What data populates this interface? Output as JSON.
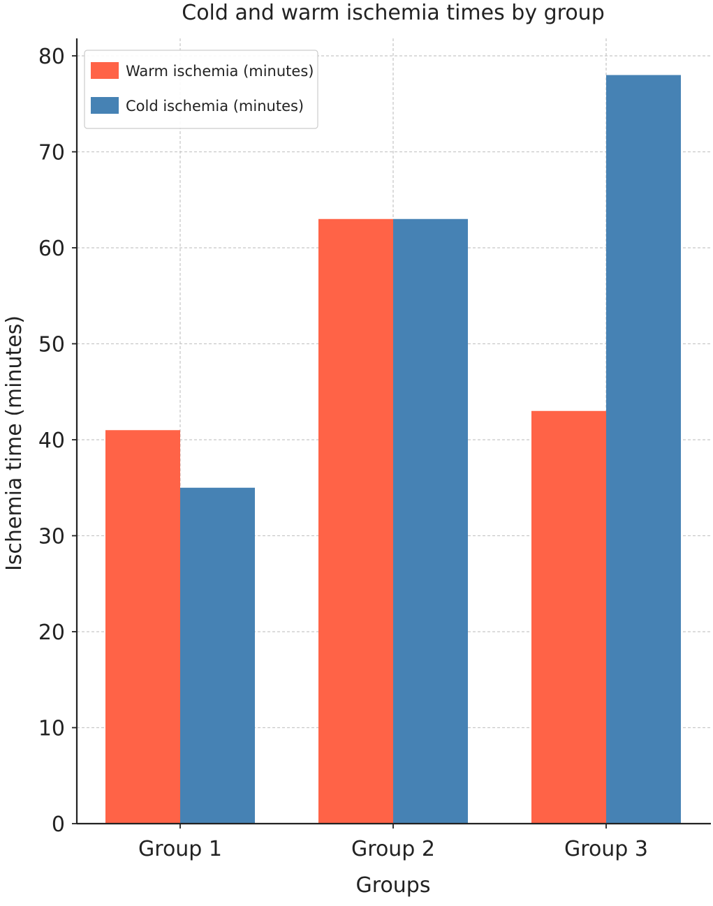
{
  "chart_data": {
    "type": "bar",
    "title": "Cold and warm ischemia times by group",
    "xlabel": "Groups",
    "ylabel": "Ischemia time (minutes)",
    "categories": [
      "Group 1",
      "Group 2",
      "Group 3"
    ],
    "series": [
      {
        "name": "Warm ischemia (minutes)",
        "values": [
          41,
          63,
          43
        ],
        "color": "#ff6347"
      },
      {
        "name": "Cold ischemia (minutes)",
        "values": [
          35,
          63,
          78
        ],
        "color": "#4682b4"
      }
    ],
    "ylim": [
      0,
      80
    ],
    "yticks": [
      0,
      10,
      20,
      30,
      40,
      50,
      60,
      70,
      80
    ],
    "grid": true,
    "legend_position": "top-left"
  }
}
